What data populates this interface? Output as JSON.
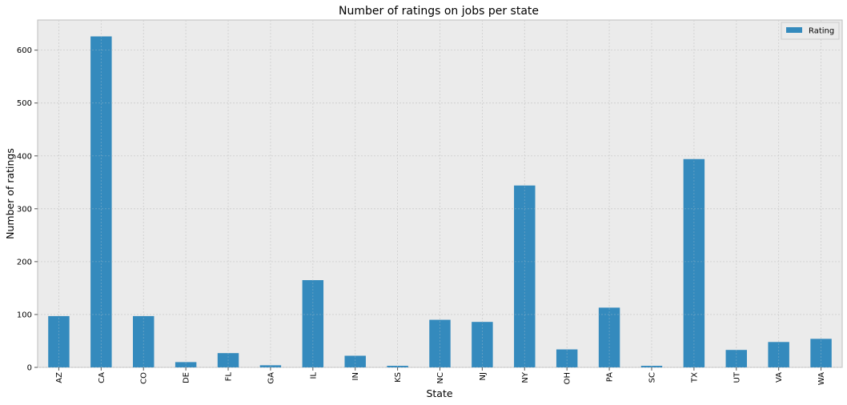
{
  "chart_data": {
    "type": "bar",
    "title": "Number of ratings on jobs per state",
    "xlabel": "State",
    "ylabel": "Number of ratings",
    "categories": [
      "AZ",
      "CA",
      "CO",
      "DE",
      "FL",
      "GA",
      "IL",
      "IN",
      "KS",
      "NC",
      "NJ",
      "NY",
      "OH",
      "PA",
      "SC",
      "TX",
      "UT",
      "VA",
      "WA"
    ],
    "series": [
      {
        "name": "Rating",
        "values": [
          97,
          626,
          97,
          10,
          27,
          4,
          165,
          22,
          3,
          90,
          86,
          344,
          34,
          113,
          3,
          394,
          33,
          48,
          54
        ]
      }
    ],
    "ylim": [
      0,
      657
    ],
    "yticks": [
      0,
      100,
      200,
      300,
      400,
      500,
      600
    ],
    "grid": true,
    "legend_position": "top-right",
    "colors": {
      "bar": "#348ABD",
      "plot_background": "#EBEBEB",
      "grid": "#CFCFCF"
    }
  }
}
